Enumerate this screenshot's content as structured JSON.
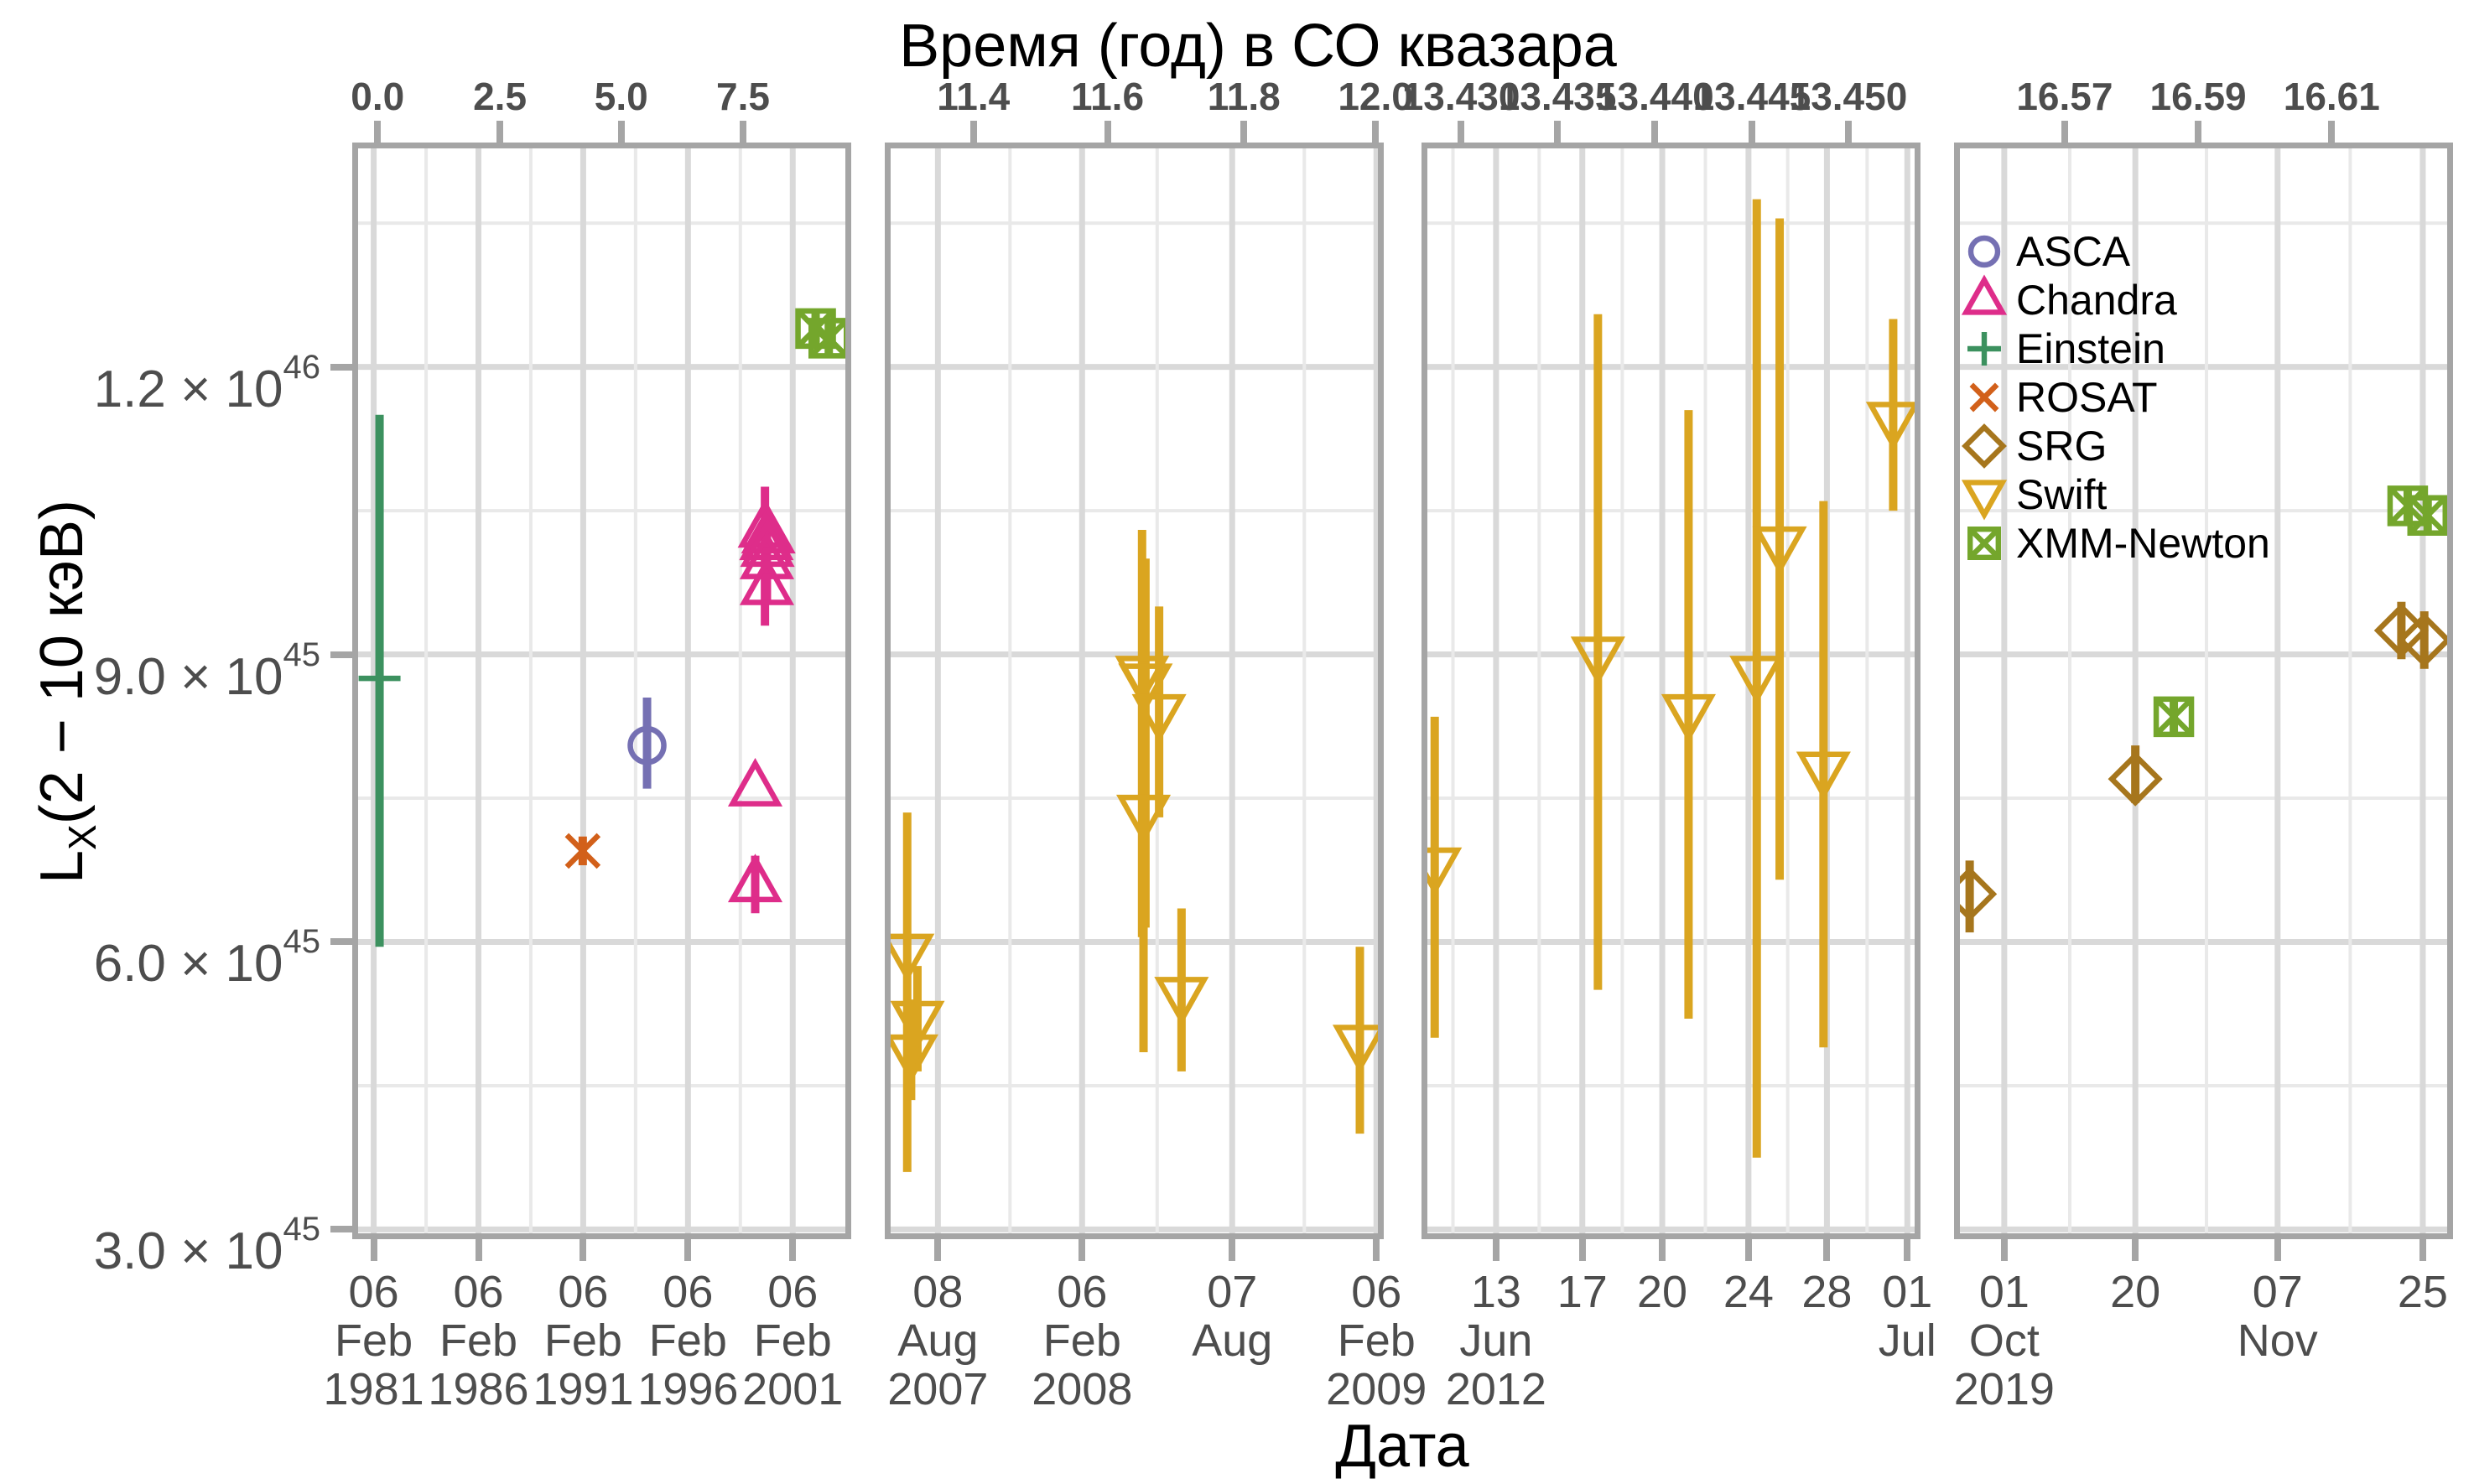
{
  "figure": {
    "top_axis_title": "Время (год) в СО квазара",
    "x_axis_title": "Дата",
    "y_axis_title": {
      "prefix": "L",
      "sub": "X",
      "rest": "(2 − 10 кэВ)"
    }
  },
  "legend": {
    "items": [
      {
        "label": "ASCA",
        "series": "ASCA",
        "shape": "circle",
        "color": "#7570B3"
      },
      {
        "label": "Chandra",
        "series": "Chandra",
        "shape": "triangle-up",
        "color": "#DE2D8A"
      },
      {
        "label": "Einstein",
        "series": "Einstein",
        "shape": "plus",
        "color": "#3C915F"
      },
      {
        "label": "ROSAT",
        "series": "ROSAT",
        "shape": "x",
        "color": "#D2601A"
      },
      {
        "label": "SRG",
        "series": "SRG",
        "shape": "diamond",
        "color": "#A6761D"
      },
      {
        "label": "Swift",
        "series": "Swift",
        "shape": "triangle-down",
        "color": "#DAA520"
      },
      {
        "label": "XMM-Newton",
        "series": "XMM-Newton",
        "shape": "square-x",
        "color": "#74A62C"
      }
    ]
  },
  "chart_data": {
    "type": "scatter",
    "title": "",
    "xlabel": "Дата",
    "ylabel": "LX(2 − 10 кэВ)",
    "grid": "on",
    "legend_position": "inside-top-left-of-last-panel",
    "y_units": "1e45",
    "y_axis": {
      "range": [
        2.96,
        14.28
      ],
      "major": [
        3,
        6,
        9,
        12
      ],
      "minor": [
        4.5,
        7.5,
        10.5,
        13.5
      ],
      "ticks": [
        {
          "value": 12,
          "mantissa": "1.2 × 10",
          "exponent": "46"
        },
        {
          "value": 9,
          "mantissa": "9.0 × 10",
          "exponent": "45"
        },
        {
          "value": 6,
          "mantissa": "6.0 × 10",
          "exponent": "45"
        },
        {
          "value": 3,
          "mantissa": "3.0 × 10",
          "exponent": "45"
        }
      ]
    },
    "panels": [
      {
        "name": "1981-2003",
        "top_ticks": [
          {
            "pct": 4.0,
            "label": "0.0"
          },
          {
            "pct": 29.1,
            "label": "2.5"
          },
          {
            "pct": 54.0,
            "label": "5.0"
          },
          {
            "pct": 79.0,
            "label": "7.5"
          }
        ],
        "bottom_ticks": [
          {
            "pct": 3.2,
            "lines": [
              "06",
              "Feb",
              "1981"
            ]
          },
          {
            "pct": 24.7,
            "lines": [
              "06",
              "Feb",
              "1986"
            ]
          },
          {
            "pct": 46.2,
            "lines": [
              "06",
              "Feb",
              "1991"
            ]
          },
          {
            "pct": 67.7,
            "lines": [
              "06",
              "Feb",
              "1996"
            ]
          },
          {
            "pct": 89.2,
            "lines": [
              "06",
              "Feb",
              "2001"
            ]
          }
        ],
        "points": [
          {
            "series": "Einstein",
            "x": 4.4,
            "y": 8.75,
            "lo": 5.95,
            "hi": 11.5
          },
          {
            "series": "ROSAT",
            "x": 46.1,
            "y": 6.95,
            "lo": 6.8,
            "hi": 7.1
          },
          {
            "series": "ASCA",
            "x": 59.3,
            "y": 8.05,
            "lo": 7.6,
            "hi": 8.55
          },
          {
            "series": "Chandra",
            "x": 83.5,
            "y": 10.3,
            "lo": 9.3,
            "hi": 10.75
          },
          {
            "series": "Chandra",
            "x": 84.2,
            "y": 10.24
          },
          {
            "series": "Chandra",
            "x": 83.8,
            "y": 10.17
          },
          {
            "series": "Chandra",
            "x": 84.0,
            "y": 10.1
          },
          {
            "series": "Chandra",
            "x": 83.9,
            "y": 9.97,
            "lo": 9.55,
            "hi": 10.4
          },
          {
            "series": "Chandra",
            "x": 83.9,
            "y": 9.7
          },
          {
            "series": "Chandra",
            "x": 81.5,
            "y": 7.6
          },
          {
            "series": "Chandra",
            "x": 81.5,
            "y": 6.6,
            "lo": 6.3,
            "hi": 6.9
          },
          {
            "series": "XMM-Newton",
            "x": 93.9,
            "y": 12.4,
            "lo": 12.2,
            "hi": 12.6
          },
          {
            "series": "XMM-Newton",
            "x": 96.6,
            "y": 12.3,
            "lo": 12.1,
            "hi": 12.5
          }
        ]
      },
      {
        "name": "2007-2009",
        "top_ticks": [
          {
            "pct": 17.0,
            "label": "11.4"
          },
          {
            "pct": 44.5,
            "label": "11.6"
          },
          {
            "pct": 72.5,
            "label": "11.8"
          },
          {
            "pct": 99.5,
            "label": "12.0"
          }
        ],
        "bottom_ticks": [
          {
            "pct": 9.7,
            "lines": [
              "08",
              "Aug",
              "2007"
            ]
          },
          {
            "pct": 39.3,
            "lines": [
              "06",
              "Feb",
              "2008"
            ]
          },
          {
            "pct": 70.1,
            "lines": [
              "07",
              "Aug"
            ]
          },
          {
            "pct": 99.7,
            "lines": [
              "06",
              "Feb",
              "2009"
            ]
          }
        ],
        "points": [
          {
            "series": "Swift",
            "x": 3.4,
            "y": 5.9,
            "lo": 3.6,
            "hi": 7.35
          },
          {
            "series": "Swift",
            "x": 5.5,
            "y": 5.2,
            "lo": 4.65,
            "hi": 5.75
          },
          {
            "series": "Swift",
            "x": 4.2,
            "y": 4.85,
            "lo": 4.35,
            "hi": 5.4
          },
          {
            "series": "Swift",
            "x": 51.6,
            "y": 8.8,
            "lo": 6.05,
            "hi": 10.3
          },
          {
            "series": "Swift",
            "x": 52.3,
            "y": 8.72,
            "lo": 6.15,
            "hi": 10.0
          },
          {
            "series": "Swift",
            "x": 55.1,
            "y": 8.4,
            "lo": 7.3,
            "hi": 9.5
          },
          {
            "series": "Swift",
            "x": 51.9,
            "y": 7.35,
            "lo": 4.85,
            "hi": 7.45
          },
          {
            "series": "Swift",
            "x": 59.7,
            "y": 5.45,
            "lo": 4.65,
            "hi": 6.35
          },
          {
            "series": "Swift",
            "x": 96.3,
            "y": 4.95,
            "lo": 4.0,
            "hi": 5.95
          }
        ]
      },
      {
        "name": "Jun-2012",
        "top_ticks": [
          {
            "pct": 6.9,
            "label": "13.430"
          },
          {
            "pct": 26.7,
            "label": "13.435"
          },
          {
            "pct": 46.7,
            "label": "13.440"
          },
          {
            "pct": 66.6,
            "label": "13.445"
          },
          {
            "pct": 86.4,
            "label": "13.450"
          }
        ],
        "bottom_ticks": [
          {
            "pct": 14.1,
            "lines": [
              "13",
              "Jun",
              "2012"
            ]
          },
          {
            "pct": 31.8,
            "lines": [
              "17"
            ]
          },
          {
            "pct": 48.2,
            "lines": [
              "20"
            ]
          },
          {
            "pct": 65.9,
            "lines": [
              "24"
            ]
          },
          {
            "pct": 82.0,
            "lines": [
              "28"
            ]
          },
          {
            "pct": 98.5,
            "lines": [
              "01",
              "Jul"
            ]
          }
        ],
        "points": [
          {
            "series": "Swift",
            "x": 1.5,
            "y": 6.8,
            "lo": 5.0,
            "hi": 8.35
          },
          {
            "series": "Swift",
            "x": 35.0,
            "y": 9.0,
            "lo": 5.5,
            "hi": 12.55
          },
          {
            "series": "Swift",
            "x": 53.6,
            "y": 8.4,
            "lo": 5.2,
            "hi": 11.55
          },
          {
            "series": "Swift",
            "x": 67.6,
            "y": 8.8,
            "lo": 3.75,
            "hi": 13.75
          },
          {
            "series": "Swift",
            "x": 72.3,
            "y": 10.15,
            "lo": 6.65,
            "hi": 13.55
          },
          {
            "series": "Swift",
            "x": 81.3,
            "y": 7.8,
            "lo": 4.9,
            "hi": 10.6
          },
          {
            "series": "Swift",
            "x": 95.6,
            "y": 11.45,
            "lo": 10.5,
            "hi": 12.5
          }
        ]
      },
      {
        "name": "Oct-Nov-2019",
        "top_ticks": [
          {
            "pct": 21.5,
            "label": "16.57"
          },
          {
            "pct": 48.9,
            "label": "16.59"
          },
          {
            "pct": 76.3,
            "label": "16.61"
          }
        ],
        "bottom_ticks": [
          {
            "pct": 9.1,
            "lines": [
              "01",
              "Oct",
              "2019"
            ]
          },
          {
            "pct": 36.0,
            "lines": [
              "20"
            ]
          },
          {
            "pct": 65.2,
            "lines": [
              "07",
              "Nov"
            ]
          },
          {
            "pct": 95.0,
            "lines": [
              "25"
            ]
          }
        ],
        "points": [
          {
            "series": "SRG",
            "x": 2.0,
            "y": 6.5,
            "lo": 6.1,
            "hi": 6.85
          },
          {
            "series": "SRG",
            "x": 36.0,
            "y": 7.7,
            "lo": 7.45,
            "hi": 8.05
          },
          {
            "series": "XMM-Newton",
            "x": 43.9,
            "y": 8.35,
            "lo": 8.15,
            "hi": 8.55
          },
          {
            "series": "SRG",
            "x": 90.6,
            "y": 9.25,
            "lo": 8.95,
            "hi": 9.55
          },
          {
            "series": "SRG",
            "x": 95.3,
            "y": 9.15,
            "lo": 8.85,
            "hi": 9.45
          },
          {
            "series": "XMM-Newton",
            "x": 91.9,
            "y": 10.55,
            "lo": 10.35,
            "hi": 10.75
          },
          {
            "series": "XMM-Newton",
            "x": 96.0,
            "y": 10.45,
            "lo": 10.25,
            "hi": 10.65
          }
        ]
      }
    ]
  }
}
